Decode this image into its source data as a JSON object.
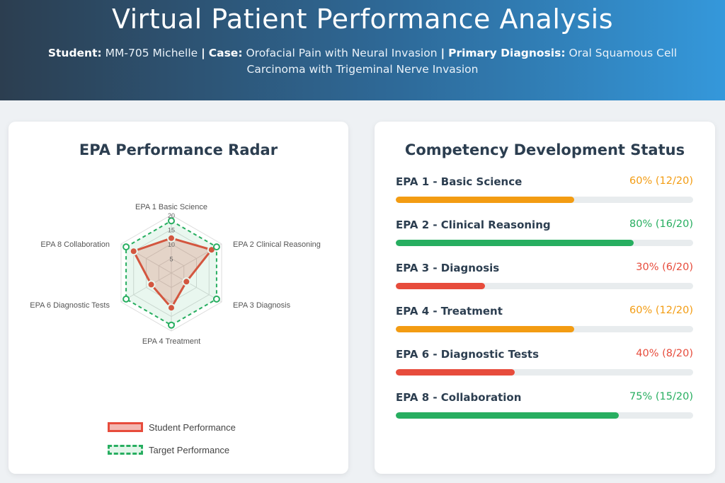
{
  "header": {
    "title": "Virtual Patient Performance Analysis",
    "student_label": "Student:",
    "student_value": "MM-705 Michelle",
    "separator": "|",
    "case_label": "Case:",
    "case_value": "Orofacial Pain with Neural Invasion",
    "diagnosis_label": "Primary Diagnosis:",
    "diagnosis_value": "Oral Squamous Cell Carcinoma with Trigeminal Nerve Invasion"
  },
  "radar_card": {
    "title": "EPA Performance Radar"
  },
  "competency_card": {
    "title": "Competency Development Status",
    "items": [
      {
        "name": "EPA 1 - Basic Science",
        "value": "60% (12/20)",
        "percent": 60,
        "color": "#f39c12"
      },
      {
        "name": "EPA 2 - Clinical Reasoning",
        "value": "80% (16/20)",
        "percent": 80,
        "color": "#27ae60"
      },
      {
        "name": "EPA 3 - Diagnosis",
        "value": "30% (6/20)",
        "percent": 30,
        "color": "#e74c3c"
      },
      {
        "name": "EPA 4 - Treatment",
        "value": "60% (12/20)",
        "percent": 60,
        "color": "#f39c12"
      },
      {
        "name": "EPA 6 - Diagnostic Tests",
        "value": "40% (8/20)",
        "percent": 40,
        "color": "#e74c3c"
      },
      {
        "name": "EPA 8 - Collaboration",
        "value": "75% (15/20)",
        "percent": 75,
        "color": "#27ae60"
      }
    ]
  },
  "colors": {
    "student": "#e74c3c",
    "target": "#27ae60",
    "orange": "#f39c12",
    "header_dark": "#2c3e50",
    "header_light": "#3498db"
  },
  "chart_data": {
    "type": "radar",
    "categories": [
      "EPA 1 Basic Science",
      "EPA 2 Clinical Reasoning",
      "EPA 3 Diagnosis",
      "EPA 4 Treatment",
      "EPA 6 Diagnostic Tests",
      "EPA 8 Collaboration"
    ],
    "series": [
      {
        "name": "Student Performance",
        "values": [
          12,
          16,
          6,
          12,
          8,
          15
        ],
        "color": "#e74c3c",
        "style": "solid"
      },
      {
        "name": "Target Performance",
        "values": [
          18,
          18,
          18,
          18,
          18,
          18
        ],
        "color": "#27ae60",
        "style": "dashed"
      }
    ],
    "rlim": [
      0,
      20
    ],
    "ticks": [
      "5",
      "10",
      "15",
      "20"
    ],
    "tick_values": [
      5,
      10,
      15,
      20
    ],
    "legend_position": "bottom"
  }
}
